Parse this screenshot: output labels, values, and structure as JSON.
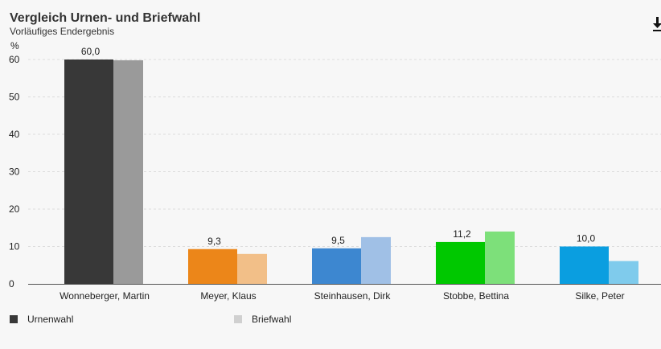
{
  "header": {
    "title": "Vergleich Urnen- und Briefwahl",
    "subtitle": "Vorläufiges Endergebnis"
  },
  "download_icon": "download-icon",
  "chart_data": {
    "type": "bar",
    "title": "Vergleich Urnen- und Briefwahl",
    "subtitle": "Vorläufiges Endergebnis",
    "ylabel": "%",
    "ylim": [
      0,
      60
    ],
    "yticks": [
      0,
      10,
      20,
      30,
      40,
      50,
      60
    ],
    "grid": true,
    "legend_position": "bottom-left",
    "categories": [
      "Wonneberger, Martin",
      "Meyer, Klaus",
      "Steinhausen, Dirk",
      "Stobbe, Bettina",
      "Silke, Peter"
    ],
    "series": [
      {
        "name": "Urnenwahl",
        "values": [
          60.0,
          9.3,
          9.5,
          11.2,
          10.0
        ],
        "labels": [
          "60,0",
          "9,3",
          "9,5",
          "11,2",
          "10,0"
        ],
        "colors": [
          "#383838",
          "#ec8619",
          "#3d87d0",
          "#00c800",
          "#0a9ee0"
        ]
      },
      {
        "name": "Briefwahl",
        "values": [
          59.8,
          8.0,
          12.5,
          14.0,
          6.1
        ],
        "colors": [
          "#9a9a9a",
          "#f2bf88",
          "#a0c0e6",
          "#7de07a",
          "#7fcbec"
        ]
      }
    ]
  },
  "legend": {
    "items": [
      {
        "label": "Urnenwahl",
        "color": "#383838"
      },
      {
        "label": "Briefwahl",
        "color": "#d0d0d0"
      }
    ]
  }
}
